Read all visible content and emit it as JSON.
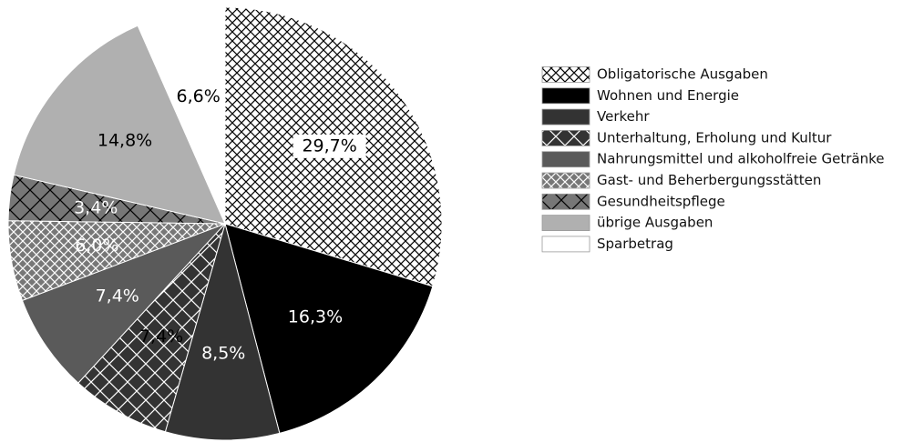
{
  "chart_data": {
    "type": "pie",
    "labels": [
      "Obligatorische Ausgaben",
      "Wohnen und Energie",
      "Verkehr",
      "Unterhaltung, Erholung und Kultur",
      "Nahrungsmittel und alkoholfreie Getränke",
      "Gast- und Beherbergungsstätten",
      "Gesundheitspflege",
      "übrige Ausgaben",
      "Sparbetrag"
    ],
    "values": [
      29.7,
      16.3,
      8.5,
      7.4,
      7.4,
      6.0,
      3.4,
      14.8,
      6.6
    ],
    "value_labels": [
      "29,7%",
      "16,3%",
      "8,5%",
      "7,4%",
      "7,4%",
      "6,0%",
      "3,4%",
      "14,8%",
      "6,6%"
    ],
    "colors": [
      "#ffffff",
      "#000000",
      "#333333",
      "#333333",
      "#5a5a5a",
      "#777777",
      "#777777",
      "#b0b0b0",
      "#ffffff"
    ],
    "hatch_colors": [
      "#000000",
      null,
      null,
      "#ffffff",
      null,
      "#ffffff",
      "#000000",
      null,
      null
    ],
    "hatch_sizes": [
      10,
      null,
      null,
      20,
      null,
      10,
      22,
      null,
      null
    ],
    "label_colors": [
      "#000000",
      "#ffffff",
      "#ffffff",
      "#000000",
      "#ffffff",
      "#ffffff",
      "#ffffff",
      "#000000",
      "#000000"
    ]
  }
}
